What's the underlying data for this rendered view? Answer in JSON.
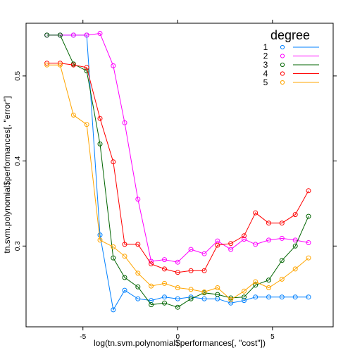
{
  "chart_data": {
    "type": "line",
    "title": "",
    "xlabel": "log(tn.svm.polynomial$performances[, \"cost\"])",
    "ylabel": "tn.svm.polynomial$performances[, \"error\"]",
    "xlim": [
      -8.0,
      8.2
    ],
    "ylim": [
      0.205,
      0.562
    ],
    "x_ticks": [
      -5,
      0,
      5
    ],
    "y_ticks": [
      0.3,
      0.4,
      0.5
    ],
    "x_tick_labels": [
      "-5",
      "0",
      "5"
    ],
    "y_tick_labels": [
      "0.3",
      "0.4",
      "0.5"
    ],
    "grid": false,
    "legend": {
      "title": "degree",
      "placement": "top-right"
    },
    "x": [
      -6.9,
      -6.2,
      -5.5,
      -4.8,
      -4.1,
      -3.4,
      -2.8,
      -2.1,
      -1.4,
      -0.7,
      0.0,
      0.7,
      1.4,
      2.1,
      2.8,
      3.5,
      4.1,
      4.8,
      5.5,
      6.2,
      6.9
    ],
    "series": [
      {
        "name": "1",
        "color": "#0080ff",
        "values": [
          0.548,
          0.548,
          0.548,
          0.548,
          0.313,
          0.225,
          0.248,
          0.238,
          0.236,
          0.24,
          0.238,
          0.24,
          0.238,
          0.238,
          0.233,
          0.236,
          0.24,
          0.24,
          0.24,
          0.24,
          0.24
        ]
      },
      {
        "name": "2",
        "color": "#ff00ff",
        "values": [
          0.548,
          0.548,
          0.548,
          0.548,
          0.55,
          0.512,
          0.445,
          0.355,
          0.282,
          0.284,
          0.281,
          0.296,
          0.291,
          0.306,
          0.296,
          0.308,
          0.302,
          0.307,
          0.309,
          0.307,
          0.304
        ]
      },
      {
        "name": "3",
        "color": "#006400",
        "values": [
          0.548,
          0.548,
          0.514,
          0.506,
          0.42,
          0.286,
          0.263,
          0.252,
          0.231,
          0.233,
          0.228,
          0.238,
          0.245,
          0.243,
          0.239,
          0.24,
          0.254,
          0.26,
          0.283,
          0.3,
          0.335
        ]
      },
      {
        "name": "4",
        "color": "#ff0000",
        "values": [
          0.515,
          0.515,
          0.513,
          0.51,
          0.45,
          0.399,
          0.302,
          0.302,
          0.279,
          0.273,
          0.269,
          0.271,
          0.271,
          0.301,
          0.303,
          0.312,
          0.339,
          0.327,
          0.327,
          0.337,
          0.365
        ]
      },
      {
        "name": "5",
        "color": "#ffa500",
        "values": [
          0.513,
          0.513,
          0.454,
          0.443,
          0.307,
          0.299,
          0.288,
          0.268,
          0.253,
          0.256,
          0.251,
          0.249,
          0.246,
          0.251,
          0.237,
          0.247,
          0.258,
          0.251,
          0.261,
          0.273,
          0.286
        ]
      }
    ]
  }
}
